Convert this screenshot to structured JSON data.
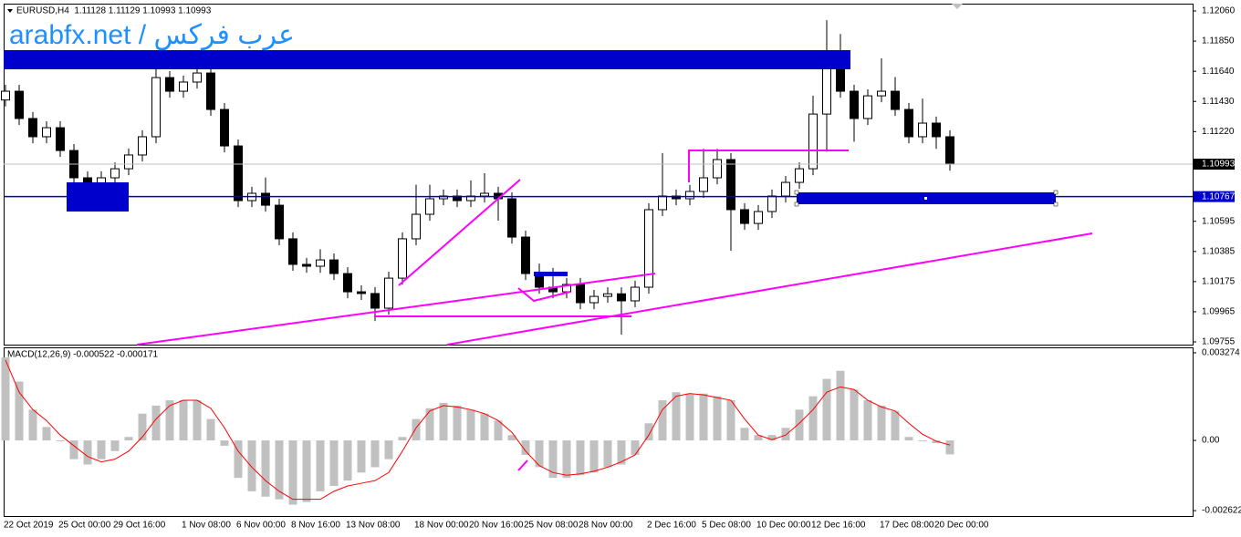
{
  "chart_data": [
    {
      "type": "candlestick",
      "title": "EURUSD,H4  1.11128 1.11129 1.10993 1.10993",
      "watermark": "arabfx.net / عرب فركس",
      "categories": [
        "22 Oct 2019",
        null,
        null,
        null,
        "25 Oct 00:00",
        null,
        null,
        null,
        "29 Oct 16:00",
        null,
        null,
        null,
        null,
        "1 Nov 08:00",
        null,
        null,
        null,
        "6 Nov 00:00",
        null,
        null,
        null,
        "8 Nov 16:00",
        null,
        null,
        null,
        "13 Nov 08:00",
        null,
        null,
        null,
        null,
        "18 Nov 00:00",
        null,
        null,
        null,
        "20 Nov 16:00",
        null,
        null,
        null,
        "25 Nov 08:00",
        null,
        null,
        null,
        "28 Nov 00:00",
        null,
        null,
        null,
        null,
        "2 Dec 16:00",
        null,
        null,
        null,
        "5 Dec 08:00",
        null,
        null,
        null,
        "10 Dec 00:00",
        null,
        null,
        null,
        "12 Dec 16:00",
        null,
        null,
        null,
        null,
        "17 Dec 08:00",
        null,
        null,
        null,
        "20 Dec 00:00",
        null
      ],
      "open": [
        1.1144,
        1.11501,
        1.11311,
        1.11184,
        1.11247,
        1.11088,
        1.10898,
        1.10803,
        1.10898,
        1.10961,
        1.11057,
        1.11184,
        1.11596,
        1.11501,
        1.11565,
        1.11628,
        1.11374,
        1.1112,
        1.10739,
        1.1079,
        1.10707,
        1.10473,
        1.10295,
        1.10282,
        1.10326,
        1.10231,
        1.10104,
        1.10092,
        1.0999,
        1.10199,
        1.10473,
        1.10644,
        1.10752,
        1.10771,
        1.10739,
        1.10771,
        1.1079,
        1.10752,
        1.10485,
        1.10231,
        1.10136,
        1.10104,
        1.10155,
        1.10028,
        1.10072,
        1.1009,
        1.10041,
        1.10136,
        1.10676,
        1.10771,
        1.10752,
        1.10803,
        1.10898,
        1.11025,
        1.10676,
        1.1058,
        1.10663,
        1.10771,
        1.10866,
        1.10961,
        1.11342,
        1.1166,
        1.11501,
        1.11311,
        1.11469,
        1.11501,
        1.11374,
        1.11184,
        1.11279,
        1.11184
      ],
      "high": [
        1.11546,
        1.11546,
        1.11356,
        1.11292,
        1.11292,
        1.11133,
        1.10943,
        1.10943,
        1.11006,
        1.11102,
        1.11229,
        1.1177,
        1.11641,
        1.1161,
        1.1178,
        1.11673,
        1.11419,
        1.11165,
        1.10835,
        1.109,
        1.10752,
        1.10518,
        1.1034,
        1.104,
        1.10371,
        1.10276,
        1.10149,
        1.10137,
        1.10244,
        1.10518,
        1.1085,
        1.1085,
        1.10816,
        1.10816,
        1.1088,
        1.1093,
        1.10835,
        1.10797,
        1.1053,
        1.103,
        1.1027,
        1.102,
        1.102,
        1.10117,
        1.10135,
        1.10135,
        1.10181,
        1.10721,
        1.1107,
        1.10816,
        1.10848,
        1.111,
        1.111,
        1.1107,
        1.10721,
        1.10708,
        1.10816,
        1.10911,
        1.11006,
        1.1147,
        1.11996,
        1.119,
        1.11546,
        1.11514,
        1.1173,
        1.116,
        1.11419,
        1.1145,
        1.11324,
        1.11229
      ],
      "low": [
        1.11395,
        1.11266,
        1.11139,
        1.11139,
        1.11043,
        1.10853,
        1.10758,
        1.10758,
        1.10853,
        1.10916,
        1.11012,
        1.11139,
        1.11456,
        1.11456,
        1.1152,
        1.11329,
        1.11075,
        1.10694,
        1.10694,
        1.10662,
        1.10428,
        1.1025,
        1.10237,
        1.10237,
        1.10186,
        1.10059,
        1.10047,
        1.099,
        1.09945,
        1.10154,
        1.10428,
        1.10599,
        1.10707,
        1.10694,
        1.10694,
        1.10726,
        1.106,
        1.1044,
        1.10186,
        1.10091,
        1.10059,
        1.10059,
        1.09983,
        1.09983,
        1.10027,
        1.09806,
        1.09996,
        1.10091,
        1.10631,
        1.10707,
        1.10707,
        1.10758,
        1.10853,
        1.1039,
        1.10535,
        1.10535,
        1.10618,
        1.10726,
        1.10821,
        1.10916,
        1.1108,
        1.11456,
        1.1115,
        1.11266,
        1.11424,
        1.11329,
        1.11139,
        1.11139,
        1.111,
        1.10948
      ],
      "close": [
        1.11501,
        1.11311,
        1.11184,
        1.11247,
        1.11088,
        1.10898,
        1.10803,
        1.10898,
        1.10961,
        1.11057,
        1.11184,
        1.11596,
        1.11501,
        1.11565,
        1.11628,
        1.11374,
        1.1112,
        1.10739,
        1.1079,
        1.10707,
        1.10473,
        1.10295,
        1.10282,
        1.10326,
        1.10231,
        1.10104,
        1.10092,
        1.0999,
        1.10199,
        1.10473,
        1.10644,
        1.10752,
        1.10771,
        1.10739,
        1.10771,
        1.1079,
        1.10752,
        1.10485,
        1.10231,
        1.10136,
        1.10104,
        1.10155,
        1.10028,
        1.10072,
        1.1009,
        1.10041,
        1.10136,
        1.10676,
        1.10771,
        1.10752,
        1.10803,
        1.10898,
        1.11025,
        1.10676,
        1.1058,
        1.10663,
        1.10771,
        1.10866,
        1.10961,
        1.11342,
        1.1166,
        1.11501,
        1.11311,
        1.11469,
        1.11501,
        1.11374,
        1.11184,
        1.11279,
        1.11184,
        1.10993
      ],
      "up_color": "#ffffff",
      "down_color": "#000000",
      "ylim": [
        1.09736,
        1.12111
      ],
      "yticks": [
        {
          "value": 1.1206,
          "label": "1.12060"
        },
        {
          "value": 1.1185,
          "label": "1.11850"
        },
        {
          "value": 1.1164,
          "label": "1.11640"
        },
        {
          "value": 1.1143,
          "label": "1.11430"
        },
        {
          "value": 1.1122,
          "label": "1.11220"
        },
        {
          "value": 1.10595,
          "label": "1.10595"
        },
        {
          "value": 1.10385,
          "label": "1.10385"
        },
        {
          "value": 1.10175,
          "label": "1.10175"
        },
        {
          "value": 1.09965,
          "label": "1.09965"
        },
        {
          "value": 1.09755,
          "label": "1.09755"
        }
      ],
      "price_labels": [
        1.10993,
        1.10767
      ],
      "price_label_colors": [
        "#000000",
        "#0000cc"
      ]
    },
    {
      "type": "macd",
      "title": "MACD(12,26,9) -0.000522 -0.000171",
      "histogram": {
        "color": "#c0c0c0",
        "values": [
          0.0031,
          0.0022,
          0.00115,
          0.0005,
          -3e-05,
          -0.0007,
          -0.0009,
          -0.0007,
          -0.0004,
          0.00013,
          0.001,
          0.0013,
          0.0015,
          0.0015,
          0.0015,
          0.0008,
          -0.0002,
          -0.0014,
          -0.0019,
          -0.0021,
          -0.0022,
          -0.0024,
          -0.0023,
          -0.0019,
          -0.0017,
          -0.0015,
          -0.0012,
          -0.001,
          -0.0007,
          0.00013,
          0.0008,
          0.0012,
          0.0014,
          0.0013,
          0.00115,
          0.001,
          0.00074,
          0.0002,
          -0.00054,
          -0.001,
          -0.0014,
          -0.0014,
          -0.0013,
          -0.0012,
          -0.001,
          -0.0009,
          -0.00054,
          0.00064,
          0.0015,
          0.0018,
          0.00175,
          0.00175,
          0.00165,
          0.0015,
          0.00047,
          0.0002,
          0.0002,
          0.00047,
          0.00115,
          0.00165,
          0.0023,
          0.0026,
          0.0019,
          0.0015,
          0.0013,
          0.0011,
          0.00013,
          -3e-05,
          -0.0001,
          -0.000522
        ]
      },
      "signal": {
        "color": "#ff0000",
        "values": [
          0.003,
          0.0018,
          0.00115,
          0.00074,
          0.0002,
          -0.0002,
          -0.0006,
          -0.0008,
          -0.0007,
          -0.0004,
          0.00013,
          0.0008,
          0.0013,
          0.0015,
          0.0015,
          0.0012,
          0.00047,
          -0.0004,
          -0.001,
          -0.0015,
          -0.0019,
          -0.0022,
          -0.0022,
          -0.0022,
          -0.0019,
          -0.0017,
          -0.0016,
          -0.0015,
          -0.0012,
          -0.0004,
          0.00047,
          0.0011,
          0.0013,
          0.00125,
          0.00115,
          0.001,
          0.00074,
          0.0003,
          -0.0004,
          -0.00094,
          -0.0012,
          -0.0013,
          -0.00125,
          -0.00115,
          -0.001,
          -0.0008,
          -0.00054,
          0.0002,
          0.00115,
          0.00165,
          0.00175,
          0.0017,
          0.0016,
          0.0015,
          0.0008,
          0.0002,
          3e-05,
          0.0002,
          0.00064,
          0.00115,
          0.0018,
          0.002,
          0.0019,
          0.0015,
          0.00125,
          0.0011,
          0.00064,
          0.00023,
          -3e-05,
          -0.000171
        ]
      },
      "ylim": [
        -0.002824,
        0.003476
      ],
      "yticks": [
        0.003274,
        {
          "value": 0,
          "label": "0.00"
        },
        -0.002622
      ]
    }
  ]
}
